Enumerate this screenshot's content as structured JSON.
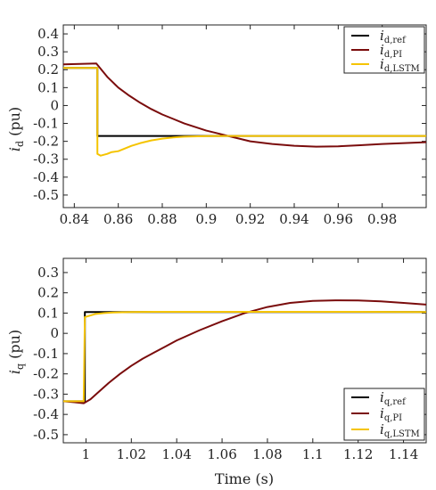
{
  "chart_data": [
    {
      "type": "line",
      "xlabel": "",
      "ylabel_main": "i",
      "ylabel_sub": "d",
      "ylabel_unit": " (pu)",
      "xlim": [
        0.835,
        1.0
      ],
      "ylim": [
        -0.57,
        0.45
      ],
      "xticks": [
        0.84,
        0.86,
        0.88,
        0.9,
        0.92,
        0.94,
        0.96,
        0.98
      ],
      "xtick_labels": [
        "0.84",
        "0.86",
        "0.88",
        "0.9",
        "0.92",
        "0.94",
        "0.96",
        "0.98"
      ],
      "yticks": [
        0.4,
        0.3,
        0.2,
        0.1,
        0,
        -0.1,
        -0.2,
        -0.3,
        -0.4,
        -0.5
      ],
      "ytick_labels": [
        "0.4",
        "0.3",
        "0.2",
        "0.1",
        "0",
        "-0.1",
        "-0.2",
        "-0.3",
        "-0.4",
        "-0.5"
      ],
      "legend_position": "top-right",
      "series": [
        {
          "name": "d,ref",
          "color": "#000000",
          "x": [
            0.835,
            0.8505,
            0.8505,
            1.0
          ],
          "y": [
            0.21,
            0.21,
            -0.17,
            -0.17
          ]
        },
        {
          "name": "d,PI",
          "color": "#7a0c0c",
          "x": [
            0.835,
            0.85,
            0.855,
            0.86,
            0.865,
            0.87,
            0.875,
            0.88,
            0.885,
            0.89,
            0.895,
            0.9,
            0.905,
            0.91,
            0.915,
            0.92,
            0.93,
            0.94,
            0.95,
            0.96,
            0.97,
            0.98,
            0.99,
            1.0
          ],
          "y": [
            0.23,
            0.235,
            0.16,
            0.1,
            0.055,
            0.015,
            -0.02,
            -0.05,
            -0.075,
            -0.1,
            -0.12,
            -0.14,
            -0.155,
            -0.17,
            -0.185,
            -0.2,
            -0.215,
            -0.225,
            -0.23,
            -0.228,
            -0.222,
            -0.215,
            -0.21,
            -0.205
          ]
        },
        {
          "name": "d,LSTM",
          "color": "#f5c400",
          "x": [
            0.835,
            0.8505,
            0.8505,
            0.852,
            0.855,
            0.857,
            0.86,
            0.863,
            0.866,
            0.87,
            0.875,
            0.88,
            0.885,
            0.89,
            0.9,
            0.91,
            0.93,
            0.96,
            1.0
          ],
          "y": [
            0.21,
            0.21,
            -0.27,
            -0.28,
            -0.27,
            -0.26,
            -0.255,
            -0.24,
            -0.225,
            -0.21,
            -0.195,
            -0.185,
            -0.178,
            -0.174,
            -0.171,
            -0.17,
            -0.17,
            -0.17,
            -0.17
          ]
        }
      ]
    },
    {
      "type": "line",
      "xlabel": "Time (s)",
      "ylabel_main": "i",
      "ylabel_sub": "q",
      "ylabel_unit": " (pu)",
      "xlim": [
        0.99,
        1.15
      ],
      "ylim": [
        -0.54,
        0.37
      ],
      "xticks": [
        1.0,
        1.02,
        1.04,
        1.06,
        1.08,
        1.1,
        1.12,
        1.14
      ],
      "xtick_labels": [
        "1",
        "1.02",
        "1.04",
        "1.06",
        "1.08",
        "1.1",
        "1.12",
        "1.14"
      ],
      "yticks": [
        0.3,
        0.2,
        0.1,
        0,
        -0.1,
        -0.2,
        -0.3,
        -0.4,
        -0.5
      ],
      "ytick_labels": [
        "0.3",
        "0.2",
        "0.1",
        "0",
        "-0.1",
        "-0.2",
        "-0.3",
        "-0.4",
        "-0.5"
      ],
      "legend_position": "bottom-right",
      "series": [
        {
          "name": "q,ref",
          "color": "#000000",
          "x": [
            0.99,
            0.9995,
            0.9995,
            1.15
          ],
          "y": [
            -0.335,
            -0.335,
            0.105,
            0.105
          ]
        },
        {
          "name": "q,PI",
          "color": "#7a0c0c",
          "x": [
            0.99,
            0.995,
            0.999,
            1.002,
            1.005,
            1.01,
            1.015,
            1.02,
            1.025,
            1.03,
            1.035,
            1.04,
            1.05,
            1.06,
            1.07,
            1.08,
            1.09,
            1.1,
            1.11,
            1.12,
            1.13,
            1.14,
            1.15
          ],
          "y": [
            -0.335,
            -0.34,
            -0.345,
            -0.325,
            -0.295,
            -0.245,
            -0.2,
            -0.16,
            -0.125,
            -0.095,
            -0.065,
            -0.035,
            0.015,
            0.06,
            0.1,
            0.13,
            0.15,
            0.16,
            0.163,
            0.162,
            0.158,
            0.15,
            0.142
          ]
        },
        {
          "name": "q,LSTM",
          "color": "#f5c400",
          "x": [
            0.99,
            0.999,
            0.9995,
            1.001,
            1.004,
            1.008,
            1.012,
            1.02,
            1.03,
            1.05,
            1.08,
            1.1,
            1.12,
            1.15
          ],
          "y": [
            -0.335,
            -0.335,
            0.08,
            0.085,
            0.095,
            0.1,
            0.103,
            0.105,
            0.106,
            0.106,
            0.106,
            0.106,
            0.106,
            0.105
          ]
        }
      ]
    }
  ]
}
